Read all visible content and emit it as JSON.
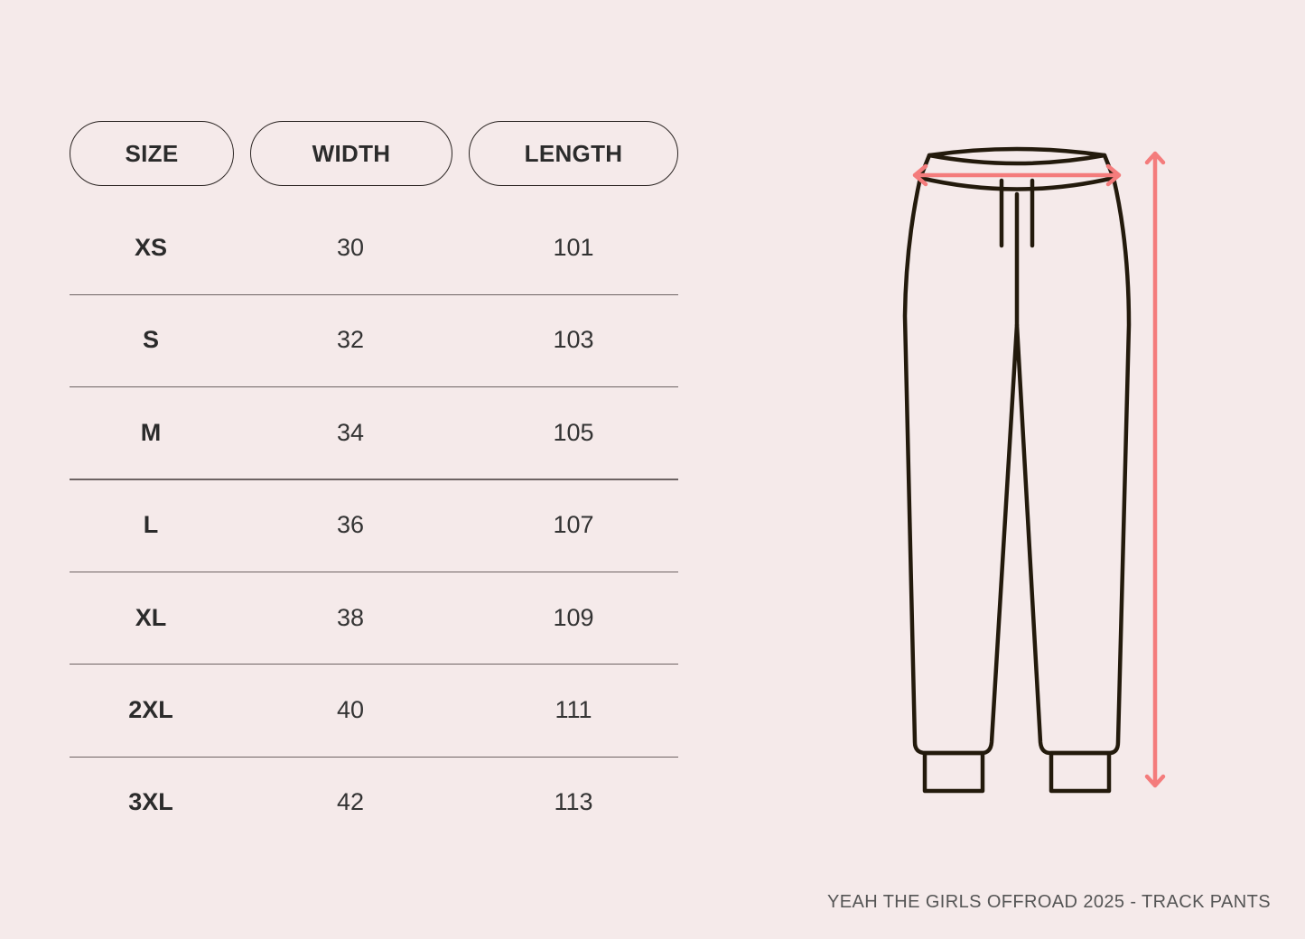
{
  "table": {
    "headers": [
      "SIZE",
      "WIDTH",
      "LENGTH"
    ],
    "rows": [
      {
        "size": "XS",
        "width": "30",
        "length": "101"
      },
      {
        "size": "S",
        "width": "32",
        "length": "103"
      },
      {
        "size": "M",
        "width": "34",
        "length": "105"
      },
      {
        "size": "L",
        "width": "36",
        "length": "107"
      },
      {
        "size": "XL",
        "width": "38",
        "length": "109"
      },
      {
        "size": "2XL",
        "width": "40",
        "length": "111"
      },
      {
        "size": "3XL",
        "width": "42",
        "length": "113"
      }
    ]
  },
  "illustration": {
    "garment": "track-pants-icon",
    "outline_color": "#231a0c",
    "arrow_color": "#f47c7c"
  },
  "footer": "YEAH THE GIRLS OFFROAD 2025 - TRACK PANTS"
}
